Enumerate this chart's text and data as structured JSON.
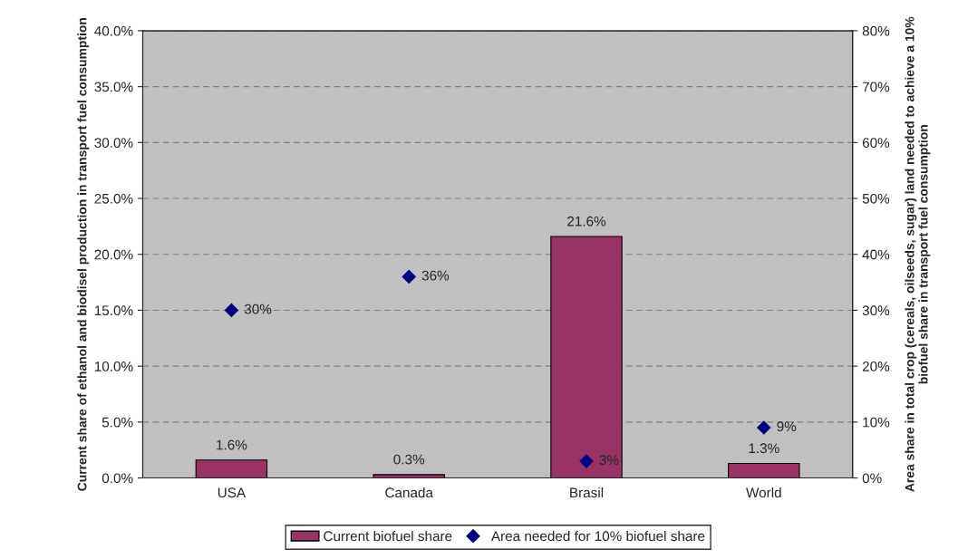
{
  "chart_data": {
    "type": "bar",
    "ylabel": "Current share of ethanol and biodisel production in transport fuel consumption",
    "y2label": "Area share in total crop (cereals, oilseeds, sugar) land needed to achieve a 10% biofuel share in transport fuel consumption",
    "categories": [
      "USA",
      "Canada",
      "Brasil",
      "World"
    ],
    "series": [
      {
        "name": "Current biofuel share",
        "color": "#993366",
        "values": [
          1.6,
          0.3,
          21.6,
          1.3
        ],
        "value_labels": [
          "1.6%",
          "0.3%",
          "21.6%",
          "1.3%"
        ]
      },
      {
        "name": "Area needed for 10% biofuel share",
        "type": "scatter",
        "axis": "y2",
        "marker": "diamond",
        "color": "#000080",
        "values": [
          30,
          36,
          3,
          9
        ],
        "value_labels": [
          "30%",
          "36%",
          "3%",
          "9%"
        ]
      }
    ],
    "ylim": [
      0,
      40
    ],
    "yticks": [
      {
        "value": 0,
        "label": "0.0%"
      },
      {
        "value": 5,
        "label": "5.0%"
      },
      {
        "value": 10,
        "label": "10.0%"
      },
      {
        "value": 15,
        "label": "15.0%"
      },
      {
        "value": 20,
        "label": "20.0%"
      },
      {
        "value": 25,
        "label": "25.0%"
      },
      {
        "value": 30,
        "label": "30.0%"
      },
      {
        "value": 35,
        "label": "35.0%"
      },
      {
        "value": 40,
        "label": "40.0%"
      }
    ],
    "y2lim": [
      0,
      80
    ],
    "y2ticks": [
      {
        "value": 0,
        "label": "0%"
      },
      {
        "value": 10,
        "label": "10%"
      },
      {
        "value": 20,
        "label": "20%"
      },
      {
        "value": 30,
        "label": "30%"
      },
      {
        "value": 40,
        "label": "40%"
      },
      {
        "value": 50,
        "label": "50%"
      },
      {
        "value": 60,
        "label": "60%"
      },
      {
        "value": 70,
        "label": "70%"
      },
      {
        "value": 80,
        "label": "80%"
      }
    ],
    "grid": "y",
    "legend": "bottom"
  }
}
